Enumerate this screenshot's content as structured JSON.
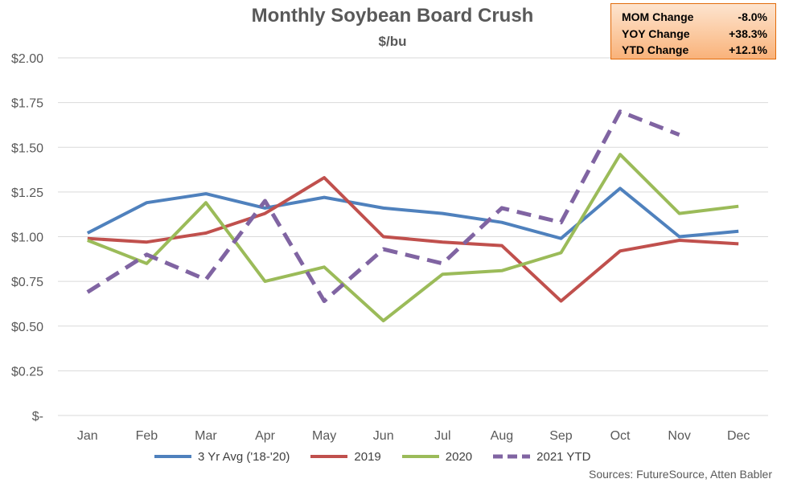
{
  "chart_data": {
    "type": "line",
    "title": "Monthly Soybean Board Crush",
    "subtitle": "$/bu",
    "categories": [
      "Jan",
      "Feb",
      "Mar",
      "Apr",
      "May",
      "Jun",
      "Jul",
      "Aug",
      "Sep",
      "Oct",
      "Nov",
      "Dec"
    ],
    "yticks": [
      0,
      0.25,
      0.5,
      0.75,
      1.0,
      1.25,
      1.5,
      1.75,
      2.0
    ],
    "ytick_labels": [
      "$-",
      "$0.25",
      "$0.50",
      "$0.75",
      "$1.00",
      "$1.25",
      "$1.50",
      "$1.75",
      "$2.00"
    ],
    "ylim": [
      0,
      2.0
    ],
    "grid": true,
    "legend_position": "bottom",
    "series": [
      {
        "name": "3 Yr Avg ('18-'20)",
        "color": "#4f81bd",
        "dashed": false,
        "values": [
          1.02,
          1.19,
          1.24,
          1.16,
          1.22,
          1.16,
          1.13,
          1.08,
          0.99,
          1.27,
          1.0,
          1.03
        ]
      },
      {
        "name": "2019",
        "color": "#c0504d",
        "dashed": false,
        "values": [
          0.99,
          0.97,
          1.02,
          1.13,
          1.33,
          1.0,
          0.97,
          0.95,
          0.64,
          0.92,
          0.98,
          0.96
        ]
      },
      {
        "name": "2020",
        "color": "#9bbb59",
        "dashed": false,
        "values": [
          0.98,
          0.85,
          1.19,
          0.75,
          0.83,
          0.53,
          0.79,
          0.81,
          0.91,
          1.46,
          1.13,
          1.17
        ]
      },
      {
        "name": "2021 YTD",
        "color": "#8064a2",
        "dashed": true,
        "values": [
          0.69,
          0.9,
          0.76,
          1.2,
          0.64,
          0.93,
          0.85,
          1.16,
          1.08,
          1.7,
          1.57,
          null
        ]
      }
    ]
  },
  "stats": [
    {
      "label": "MOM Change",
      "value": "-8.0%"
    },
    {
      "label": "YOY Change",
      "value": "+38.3%"
    },
    {
      "label": "YTD Change",
      "value": "+12.1%"
    }
  ],
  "source": "Sources: FutureSource, Atten Babler"
}
